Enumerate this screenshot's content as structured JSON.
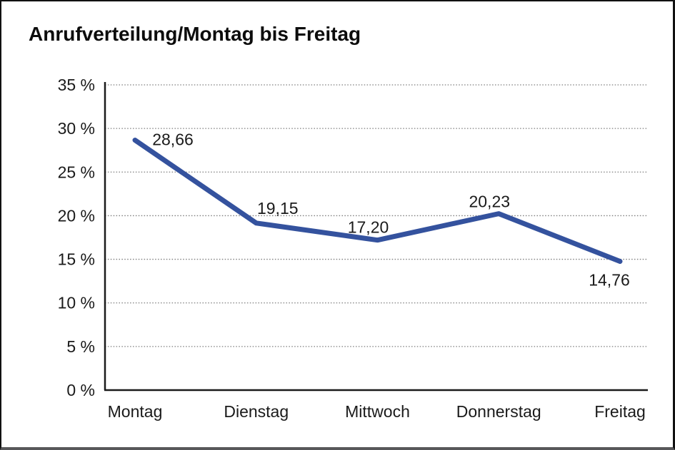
{
  "title": "Anrufverteilung/Montag bis Freitag",
  "chart_data": {
    "type": "line",
    "title": "Anrufverteilung/Montag bis Freitag",
    "categories": [
      "Montag",
      "Dienstag",
      "Mittwoch",
      "Donnerstag",
      "Freitag"
    ],
    "values": [
      28.66,
      19.15,
      17.2,
      20.23,
      14.76
    ],
    "data_labels": [
      "28,66",
      "19,15",
      "17,20",
      "20,23",
      "14,76"
    ],
    "series_name": "Anrufverteilung",
    "xlabel": "",
    "ylabel": "",
    "ylim": [
      0,
      35
    ],
    "y_tick_step": 5,
    "y_ticks": [
      "35 %",
      "30 %",
      "25 %",
      "20 %",
      "15 %",
      "10 %",
      "5 %",
      "0 %"
    ],
    "y_tick_values": [
      35,
      30,
      25,
      20,
      15,
      10,
      5,
      0
    ],
    "grid": "dotted horizontal gridlines",
    "legend": "none",
    "line_color": "#34529e",
    "grid_color": "#7d7d7d",
    "axis_color": "#1a1a1a",
    "text_color": "#1a1a1a"
  }
}
